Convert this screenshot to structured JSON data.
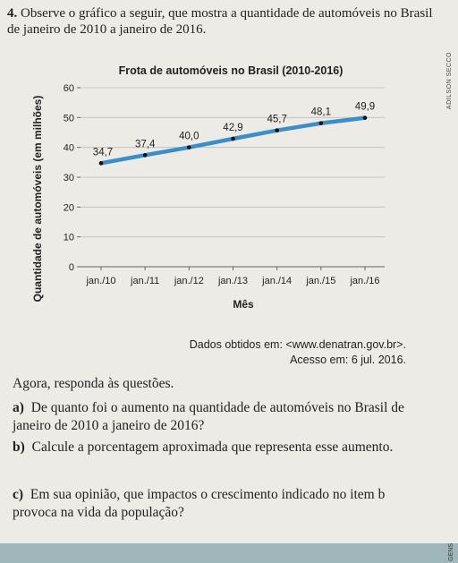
{
  "question": {
    "number": "4.",
    "text": "Observe o gráfico a seguir, que mostra a quantidade de automóveis no Brasil de janeiro de 2010 a janeiro de 2016."
  },
  "chart_data": {
    "type": "line",
    "title": "Frota de automóveis no Brasil (2010-2016)",
    "xlabel": "Mês",
    "ylabel": "Quantidade de automóveis (em milhões)",
    "categories": [
      "jan./10",
      "jan./11",
      "jan./12",
      "jan./13",
      "jan./14",
      "jan./15",
      "jan./16"
    ],
    "values": [
      34.7,
      37.4,
      40.0,
      42.9,
      45.7,
      48.1,
      49.9
    ],
    "data_labels": [
      "34,7",
      "37,4",
      "40,0",
      "42,9",
      "45,7",
      "48,1",
      "49,9"
    ],
    "ylim": [
      0,
      60
    ],
    "yticks": [
      0,
      10,
      20,
      30,
      40,
      50,
      60
    ],
    "ytick_labels": [
      "0",
      "10",
      "20",
      "30",
      "40",
      "50",
      "60"
    ],
    "grid": true,
    "line_color": "#3a8fc6"
  },
  "side_credit": "ADILSON SECCO",
  "source": {
    "line1": "Dados obtidos em: <www.denatran.gov.br>.",
    "line2": "Acesso em: 6 jul. 2016."
  },
  "prompt": "Agora, responda às questões.",
  "items": [
    {
      "letter": "a)",
      "text": "De quanto foi o aumento na quantidade de automóveis no Brasil de janeiro de 2010 a janeiro de 2016?"
    },
    {
      "letter": "b)",
      "text": "Calcule a porcentagem aproximada que representa esse aumento."
    },
    {
      "letter": "c)",
      "text": "Em sua opinião, que impactos o crescimento indicado no item b provoca na vida da população?"
    }
  ],
  "bottom_credit": "GENS"
}
